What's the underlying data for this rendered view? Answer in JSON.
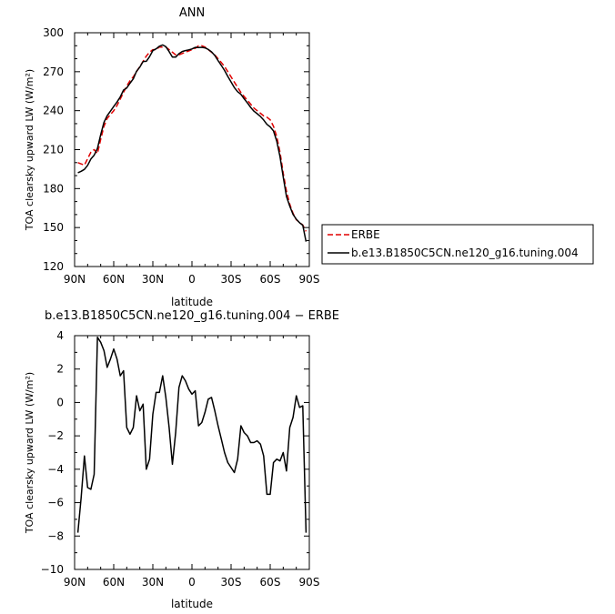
{
  "chart_data": [
    {
      "type": "line",
      "title": "ANN",
      "xlabel": "latitude",
      "ylabel": "TOA clearsky upward LW (W/m²)",
      "xlim": [
        90,
        -90
      ],
      "ylim": [
        120,
        300
      ],
      "xticks": [
        90,
        60,
        30,
        0,
        -30,
        -60,
        -90
      ],
      "xtick_labels": [
        "90N",
        "60N",
        "30N",
        "0",
        "30S",
        "60S",
        "90S"
      ],
      "yticks": [
        120,
        150,
        180,
        210,
        240,
        270,
        300
      ],
      "ytick_labels": [
        "120",
        "150",
        "180",
        "210",
        "240",
        "270",
        "300"
      ],
      "legend": {
        "placement": "outside-right"
      },
      "series": [
        {
          "name": "ERBE",
          "color": "#e00000",
          "dash": "dashed",
          "x": [
            87.5,
            85,
            82.5,
            80,
            77.5,
            75,
            72.5,
            70,
            67.5,
            65,
            62.5,
            60,
            57.5,
            55,
            52.5,
            50,
            47.5,
            45,
            42.5,
            40,
            37.5,
            35,
            32.5,
            30,
            27.5,
            25,
            22.5,
            20,
            17.5,
            15,
            12.5,
            10,
            7.5,
            5,
            2.5,
            0,
            -2.5,
            -5,
            -7.5,
            -10,
            -12.5,
            -15,
            -17.5,
            -20,
            -22.5,
            -25,
            -27.5,
            -30,
            -32.5,
            -35,
            -37.5,
            -40,
            -42.5,
            -45,
            -47.5,
            -50,
            -52.5,
            -55,
            -57.5,
            -60,
            -62.5,
            -65,
            -67.5,
            -70,
            -72.5,
            -75,
            -77.5,
            -80,
            -82.5,
            -85,
            -87.5
          ],
          "y": [
            200,
            199,
            198,
            203,
            208,
            210,
            207,
            218,
            228,
            234,
            237,
            240,
            244,
            249,
            254,
            259,
            263,
            266,
            270,
            274,
            278,
            282,
            285,
            287,
            287,
            289,
            289,
            289,
            287,
            285,
            283,
            283,
            284,
            285,
            286,
            287,
            288,
            290,
            290,
            289,
            287,
            285,
            283,
            280,
            277,
            274,
            270,
            266,
            262,
            258,
            254,
            251,
            248,
            245,
            242,
            240,
            238,
            236,
            235,
            233,
            228,
            220,
            208,
            192,
            178,
            168,
            161,
            156,
            154,
            152,
            147
          ]
        },
        {
          "name": "b.e13.B1850C5CN.ne120_g16.tuning.004",
          "color": "#000000",
          "dash": "solid",
          "x": [
            87.5,
            85,
            82.5,
            80,
            77.5,
            75,
            72.5,
            70,
            67.5,
            65,
            62.5,
            60,
            57.5,
            55,
            52.5,
            50,
            47.5,
            45,
            42.5,
            40,
            37.5,
            35,
            32.5,
            30,
            27.5,
            25,
            22.5,
            20,
            17.5,
            15,
            12.5,
            10,
            7.5,
            5,
            2.5,
            0,
            -2.5,
            -5,
            -7.5,
            -10,
            -12.5,
            -15,
            -17.5,
            -20,
            -22.5,
            -25,
            -27.5,
            -30,
            -32.5,
            -35,
            -37.5,
            -40,
            -42.5,
            -45,
            -47.5,
            -50,
            -52.5,
            -55,
            -57.5,
            -60,
            -62.5,
            -65,
            -67.5,
            -70,
            -72.5,
            -75,
            -77.5,
            -80,
            -82.5,
            -85,
            -87.5
          ],
          "y": [
            192.2,
            193.3,
            194.8,
            197.9,
            202.8,
            205.7,
            210.9,
            221.6,
            231.1,
            236.1,
            239.6,
            243.2,
            246.6,
            250.6,
            255.9,
            257.5,
            261.1,
            264.5,
            270.4,
            273.5,
            277.9,
            278.0,
            281.6,
            286.3,
            287.6,
            289.6,
            290.6,
            289.3,
            285.5,
            281.3,
            281.2,
            283.9,
            285.6,
            286.3,
            286.8,
            287.5,
            288.7,
            288.6,
            288.8,
            288.4,
            287.2,
            285.3,
            282.5,
            278.6,
            274.8,
            271.0,
            266.4,
            262.1,
            257.8,
            254.6,
            252.6,
            249.2,
            246.0,
            242.6,
            239.6,
            237.7,
            235.5,
            232.8,
            229.5,
            227.5,
            224.4,
            216.6,
            204.5,
            189.0,
            173.9,
            166.5,
            160.1,
            156.4,
            153.7,
            151.8,
            139.2
          ]
        }
      ]
    },
    {
      "type": "line",
      "title": "b.e13.B1850C5CN.ne120_g16.tuning.004 − ERBE",
      "xlabel": "latitude",
      "ylabel": "TOA clearsky upward LW (W/m²)",
      "xlim": [
        90,
        -90
      ],
      "ylim": [
        -10,
        4
      ],
      "xticks": [
        90,
        60,
        30,
        0,
        -30,
        -60,
        -90
      ],
      "xtick_labels": [
        "90N",
        "60N",
        "30N",
        "0",
        "30S",
        "60S",
        "90S"
      ],
      "yticks": [
        -10,
        -8,
        -6,
        -4,
        -2,
        0,
        2,
        4
      ],
      "ytick_labels": [
        "−10",
        "−8",
        "−6",
        "−4",
        "−2",
        "0",
        "2",
        "4"
      ],
      "series": [
        {
          "color": "#000000",
          "x": [
            87.5,
            85,
            82.5,
            80,
            77.5,
            75,
            72.5,
            70,
            67.5,
            65,
            62.5,
            60,
            57.5,
            55,
            52.5,
            50,
            47.5,
            45,
            42.5,
            40,
            37.5,
            35,
            32.5,
            30,
            27.5,
            25,
            22.5,
            20,
            17.5,
            15,
            12.5,
            10,
            7.5,
            5,
            2.5,
            0,
            -2.5,
            -5,
            -7.5,
            -10,
            -12.5,
            -15,
            -17.5,
            -20,
            -22.5,
            -25,
            -27.5,
            -30,
            -32.5,
            -35,
            -37.5,
            -40,
            -42.5,
            -45,
            -47.5,
            -50,
            -52.5,
            -55,
            -57.5,
            -60,
            -62.5,
            -65,
            -67.5,
            -70,
            -72.5,
            -75,
            -77.5,
            -80,
            -82.5,
            -85,
            -87.5
          ],
          "y": [
            -7.8,
            -5.7,
            -3.2,
            -5.1,
            -5.2,
            -4.3,
            3.9,
            3.6,
            3.1,
            2.1,
            2.6,
            3.2,
            2.6,
            1.6,
            1.9,
            -1.5,
            -1.9,
            -1.5,
            0.4,
            -0.5,
            -0.1,
            -4.0,
            -3.4,
            -0.7,
            0.6,
            0.6,
            1.6,
            0.3,
            -1.5,
            -3.7,
            -1.8,
            0.9,
            1.6,
            1.3,
            0.8,
            0.5,
            0.7,
            -1.4,
            -1.2,
            -0.6,
            0.2,
            0.3,
            -0.5,
            -1.4,
            -2.2,
            -3.0,
            -3.6,
            -3.9,
            -4.2,
            -3.4,
            -1.4,
            -1.8,
            -2.0,
            -2.4,
            -2.4,
            -2.3,
            -2.5,
            -3.2,
            -5.5,
            -5.5,
            -3.6,
            -3.4,
            -3.5,
            -3.0,
            -4.1,
            -1.5,
            -0.9,
            0.4,
            -0.3,
            -0.2,
            -7.8
          ]
        }
      ]
    }
  ]
}
